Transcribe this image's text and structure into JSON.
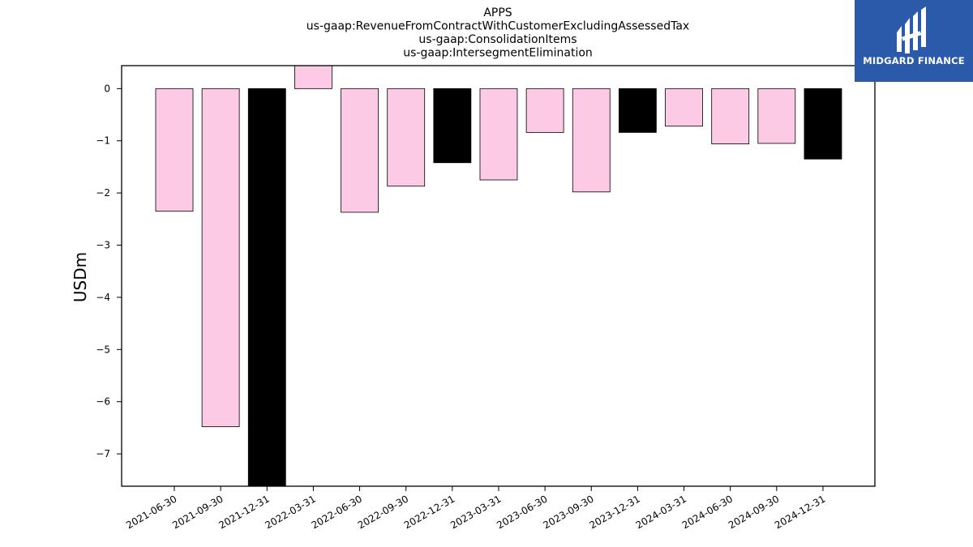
{
  "chart_data": {
    "type": "bar",
    "title_lines": [
      "APPS",
      "us-gaap:RevenueFromContractWithCustomerExcludingAssessedTax",
      "us-gaap:ConsolidationItems",
      "us-gaap:IntersegmentElimination"
    ],
    "xlabel": "",
    "ylabel": "USDm",
    "categories": [
      "2021-06-30",
      "2021-09-30",
      "2021-12-31",
      "2022-03-31",
      "2022-06-30",
      "2022-09-30",
      "2022-12-31",
      "2023-03-31",
      "2023-06-30",
      "2023-09-30",
      "2023-12-31",
      "2024-03-31",
      "2024-06-30",
      "2024-09-30",
      "2024-12-31"
    ],
    "values": [
      -2.35,
      -6.48,
      -7.8,
      0.45,
      -2.37,
      -1.87,
      -1.42,
      -1.75,
      -0.84,
      -1.98,
      -0.84,
      -0.72,
      -1.06,
      -1.05,
      -1.35
    ],
    "bar_colors": [
      "#fdcae6",
      "#fdcae6",
      "#000000",
      "#fdcae6",
      "#fdcae6",
      "#fdcae6",
      "#000000",
      "#fdcae6",
      "#fdcae6",
      "#fdcae6",
      "#000000",
      "#fdcae6",
      "#fdcae6",
      "#fdcae6",
      "#000000"
    ],
    "ylim": [
      -7.62,
      0.44
    ],
    "yticks": [
      0,
      -1,
      -2,
      -3,
      -4,
      -5,
      -6,
      -7
    ],
    "grid": false,
    "legend": "none"
  },
  "logo": {
    "text": "MIDGARD FINANCE",
    "background": "#2b5aaa",
    "icon": "midgard-logo-icon"
  }
}
